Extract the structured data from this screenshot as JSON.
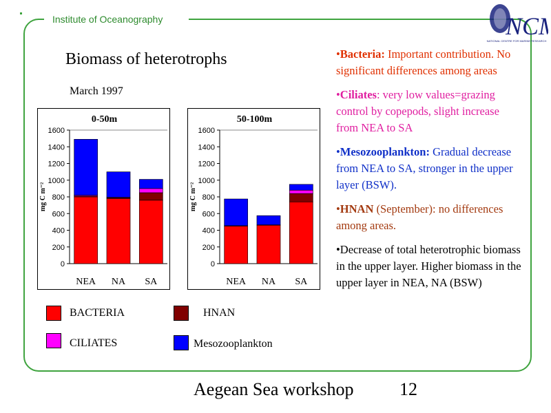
{
  "header": {
    "institute": "Institute of Oceanography",
    "logo_text": "NCMR",
    "logo_subtext": "NATIONAL CENTRE FOR MARINE RESEARCH"
  },
  "slide": {
    "title": "Biomass of heterotrophs",
    "date": "March 1997"
  },
  "colors": {
    "bacteria": "#ff0000",
    "ciliates": "#ff00ff",
    "hnan": "#800000",
    "meso": "#0000ff",
    "frame": "#3ea33e"
  },
  "chart_data": [
    {
      "type": "bar",
      "stacked": true,
      "title": "0-50m",
      "ylabel": "mg C m⁻²",
      "categories": [
        "NEA",
        "NA",
        "SA"
      ],
      "ylim": [
        0,
        1600
      ],
      "yticks": [
        0,
        200,
        400,
        600,
        800,
        1000,
        1200,
        1400,
        1600
      ],
      "series": [
        {
          "name": "BACTERIA",
          "values": [
            800,
            780,
            760
          ]
        },
        {
          "name": "HNAN",
          "values": [
            10,
            10,
            90
          ]
        },
        {
          "name": "CILIATES",
          "values": [
            10,
            5,
            50
          ]
        },
        {
          "name": "Mesozooplankton",
          "values": [
            670,
            305,
            110
          ]
        }
      ]
    },
    {
      "type": "bar",
      "stacked": true,
      "title": "50-100m",
      "ylabel": "mg C m⁻²",
      "categories": [
        "NEA",
        "NA",
        "SA"
      ],
      "ylim": [
        0,
        1600
      ],
      "yticks": [
        0,
        200,
        400,
        600,
        800,
        1000,
        1200,
        1400,
        1600
      ],
      "series": [
        {
          "name": "BACTERIA",
          "values": [
            450,
            460,
            740
          ]
        },
        {
          "name": "HNAN",
          "values": [
            5,
            5,
            100
          ]
        },
        {
          "name": "CILIATES",
          "values": [
            0,
            0,
            40
          ]
        },
        {
          "name": "Mesozooplankton",
          "values": [
            320,
            110,
            70
          ]
        }
      ]
    }
  ],
  "legend": {
    "bacteria": "BACTERIA",
    "ciliates": "CILIATES",
    "hnan": "HNAN",
    "meso": "Mesozooplankton"
  },
  "notes": {
    "bacteria_head": "Bacteria:",
    "bacteria_body": " Important contribution. No significant differences among areas",
    "ciliates_head": "Ciliates",
    "ciliates_body": ": very low values=grazing control by copepods, slight increase from NEA to SA",
    "meso_head": "Mesozooplankton:",
    "meso_body": " Gradual decrease from NEA to SA, stronger in the upper layer (BSW).",
    "hnan_head": "HNAN",
    "hnan_body": " (September): no differences among areas.",
    "total": "Decrease of total heterotrophic biomass in the upper layer. Higher biomass in the upper layer in NEA, NA (BSW)"
  },
  "footer": {
    "text": "Aegean Sea workshop",
    "page": "12"
  }
}
